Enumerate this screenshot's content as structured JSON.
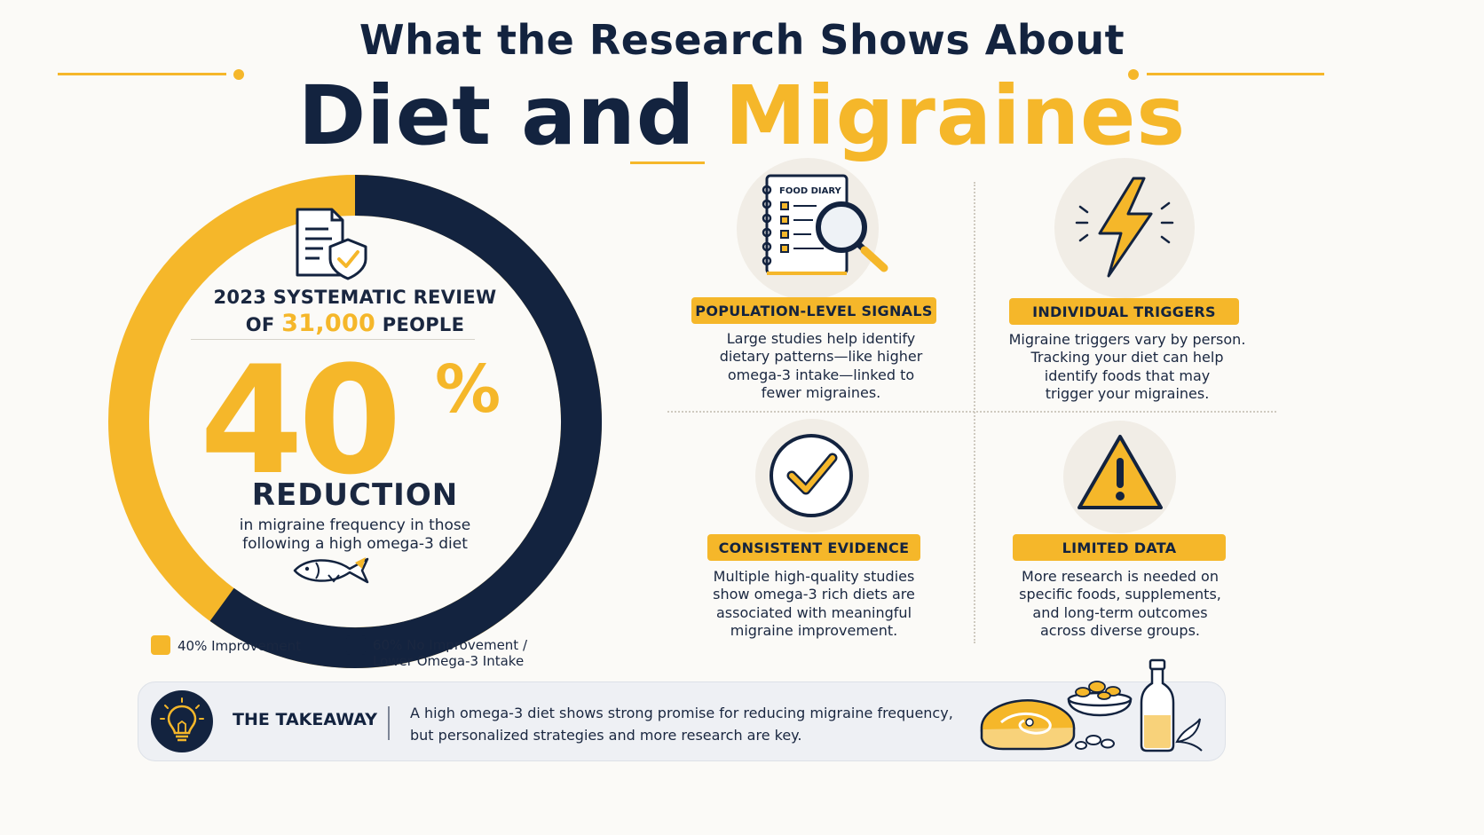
{
  "header": {
    "title_top": "What the Research Shows About",
    "title_main": "Diet and",
    "title_accent": "Migraines"
  },
  "colors": {
    "accent_yellow": "#f5b72a",
    "navy": "#13233f",
    "background": "#fbfaf7"
  },
  "ring": {
    "review_line1": "2023 SYSTEMATIC REVIEW",
    "review_line2_pre": "OF ",
    "review_number": "31,000",
    "review_line2_post": " PEOPLE",
    "big_number": "40",
    "big_sign": "%",
    "reduction_label": "REDUCTION",
    "reduction_desc_1": "in migraine frequency in those",
    "reduction_desc_2": "following a high omega-3 diet",
    "icon_top": "document-shield-icon",
    "icon_bottom": "fish-icon",
    "improvement_fraction": 0.4
  },
  "legend": {
    "item1": "40% Improvement",
    "item2_line1": "60% No Improvement /",
    "item2_line2": "Lower Omega-3 Intake"
  },
  "cards": [
    {
      "icon": "food-diary-magnifier-icon",
      "diary_label": "FOOD DIARY",
      "title": "POPULATION-LEVEL SIGNALS",
      "lines": [
        "Large studies help identify",
        "dietary patterns—like higher",
        "omega-3 intake—linked to",
        "fewer migraines."
      ]
    },
    {
      "icon": "lightning-bolt-icon",
      "title": "INDIVIDUAL TRIGGERS",
      "lines": [
        "Migraine triggers vary by person.",
        "Tracking your diet can help",
        "identify foods that may",
        "trigger your migraines."
      ]
    },
    {
      "icon": "checkmark-circle-icon",
      "title": "CONSISTENT EVIDENCE",
      "lines": [
        "Multiple high-quality studies",
        "show omega-3 rich diets are",
        "associated with meaningful",
        "migraine improvement."
      ]
    },
    {
      "icon": "warning-triangle-icon",
      "title": "LIMITED DATA",
      "lines": [
        "More research is needed on",
        "specific foods, supplements,",
        "and long-term outcomes",
        "across diverse groups."
      ]
    }
  ],
  "takeaway": {
    "icon": "lightbulb-icon",
    "label": "THE TAKEAWAY",
    "line1": "A high omega-3 diet shows strong promise for reducing migraine frequency,",
    "line2": "but personalized strategies and more research are key.",
    "illustration": "salmon-nuts-oil-icon"
  }
}
